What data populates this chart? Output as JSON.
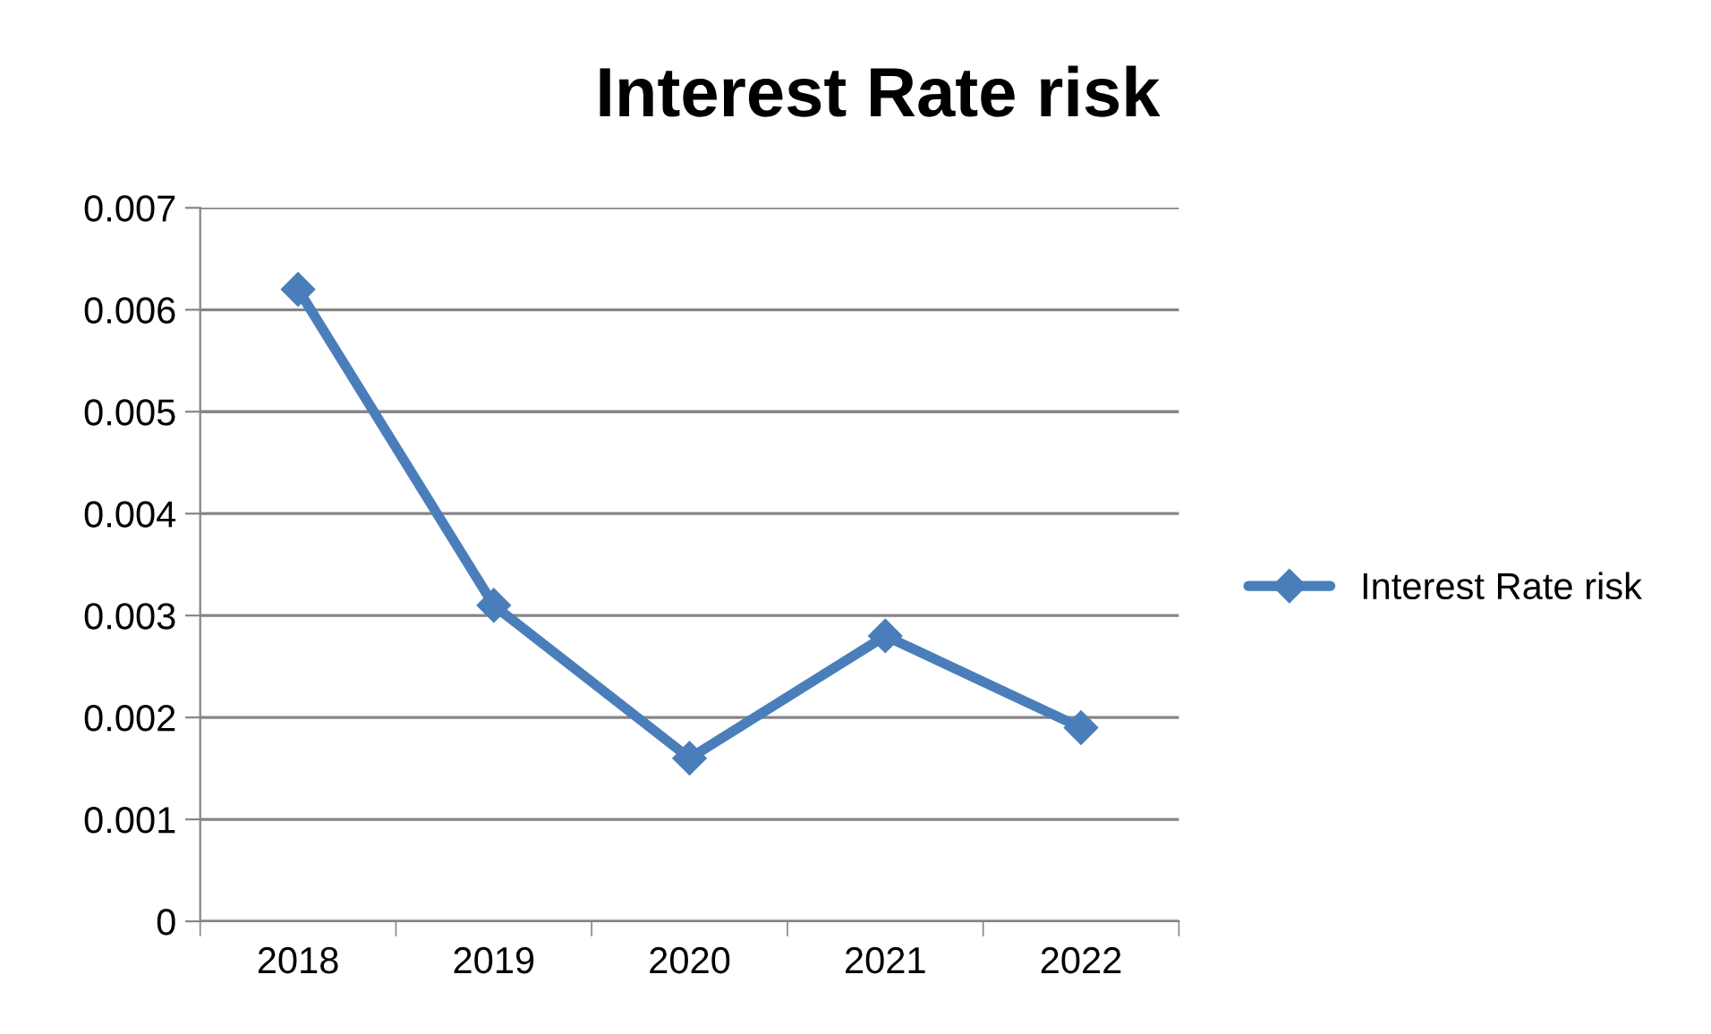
{
  "chart_data": {
    "type": "line",
    "title": "Interest Rate risk",
    "categories": [
      "2018",
      "2019",
      "2020",
      "2021",
      "2022"
    ],
    "series": [
      {
        "name": "Interest Rate risk",
        "color": "#4a7ebb",
        "values": [
          0.0062,
          0.0031,
          0.0016,
          0.0028,
          0.0019
        ]
      }
    ],
    "ylim": [
      0,
      0.007
    ],
    "yticks": [
      {
        "value": 0,
        "label": "0"
      },
      0.001,
      0.002,
      0.003,
      0.004,
      0.005,
      0.006,
      0.007
    ],
    "grid": "y",
    "legend": "right",
    "marker": "diamond",
    "line_style": "solid"
  }
}
